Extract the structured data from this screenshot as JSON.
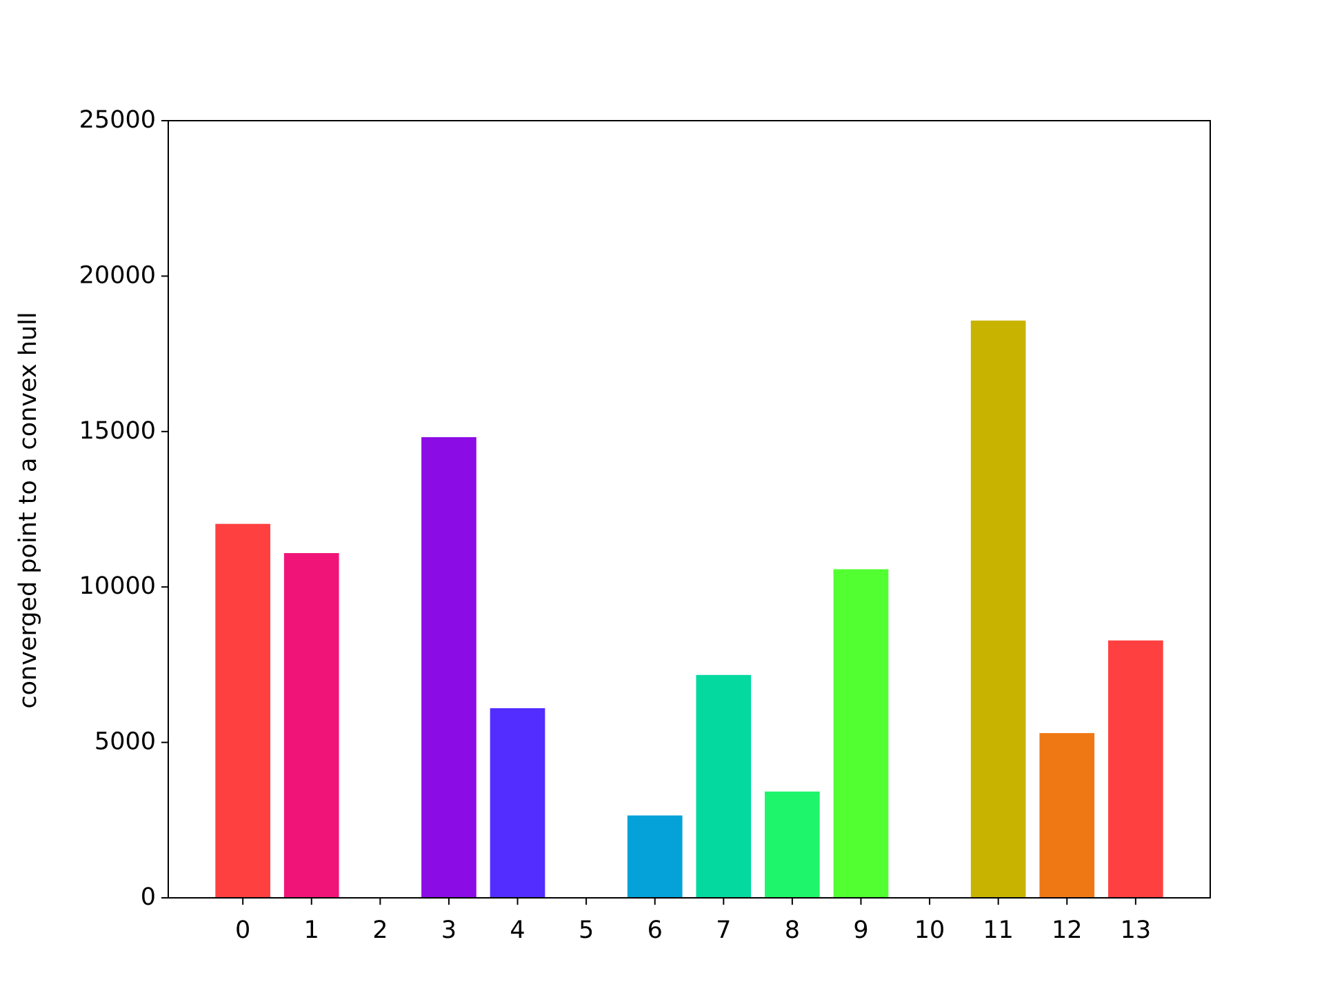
{
  "chart_data": {
    "type": "bar",
    "ylabel": "converged point to a convex hull",
    "categories": [
      "0",
      "1",
      "2",
      "3",
      "4",
      "5",
      "6",
      "7",
      "8",
      "9",
      "10",
      "11",
      "12",
      "13"
    ],
    "values": [
      12030,
      11090,
      0,
      14820,
      6100,
      0,
      2650,
      7170,
      3420,
      10570,
      0,
      18570,
      5300,
      8280
    ],
    "colors": [
      "#ff4040",
      "#f01478",
      "#c00ad8",
      "#8c0ce6",
      "#532cff",
      "#1c5cf0",
      "#04a2d8",
      "#04d9a0",
      "#1ef56a",
      "#52ff30",
      "#9ef010",
      "#c8b400",
      "#f07814",
      "#ff4040"
    ],
    "ylim": [
      0,
      25000
    ],
    "yticks": [
      0,
      5000,
      10000,
      15000,
      20000,
      25000
    ],
    "grid": false
  }
}
